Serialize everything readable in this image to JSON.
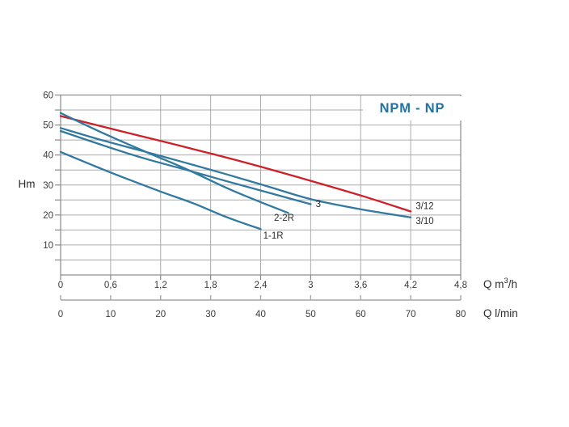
{
  "title": "NPM - NP",
  "colors": {
    "red_curve": "#cd2027",
    "blue_curve": "#31799f",
    "title_text": "#2272a3",
    "grid": "#ababab",
    "frame": "#8a8a8a",
    "secondary_axis": "#a6a6a6",
    "text": "#3a3a3a"
  },
  "y_axis": {
    "name": "Hm",
    "tick_labels": [
      "10",
      "20",
      "30",
      "40",
      "50",
      "60"
    ],
    "tick_values": [
      10,
      20,
      30,
      40,
      50,
      60
    ],
    "minor_step": 5
  },
  "x_axis_primary": {
    "unit_main": "Q m",
    "unit_sup": "3",
    "unit_tail": "/h",
    "tick_labels": [
      "0",
      "0,6",
      "1,2",
      "1,8",
      "2,4",
      "3",
      "3,6",
      "4,2",
      "4,8"
    ],
    "tick_values": [
      0,
      0.6,
      1.2,
      1.8,
      2.4,
      3,
      3.6,
      4.2,
      4.8
    ]
  },
  "x_axis_secondary": {
    "unit": "Q l/min",
    "tick_labels": [
      "0",
      "10",
      "20",
      "30",
      "40",
      "50",
      "60",
      "70",
      "80"
    ],
    "tick_values": [
      0,
      10,
      20,
      30,
      40,
      50,
      60,
      70,
      80
    ]
  },
  "chart_data": {
    "type": "line",
    "title": "NPM - NP",
    "ylabel": "Hm",
    "xlabel_primary": "Q m3/h",
    "xlabel_secondary": "Q l/min",
    "x_range": [
      0,
      4.8
    ],
    "y_range": [
      0,
      60
    ],
    "grid": {
      "x_step": 0.6,
      "y_step": 5,
      "visible": true
    },
    "legend": "inline curve labels",
    "series": [
      {
        "name": "3/12",
        "color_key": "red_curve",
        "points": [
          [
            0,
            53
          ],
          [
            0.6,
            48.8
          ],
          [
            1.2,
            44.7
          ],
          [
            1.8,
            40.5
          ],
          [
            2.4,
            36.1
          ],
          [
            3.0,
            31.4
          ],
          [
            3.6,
            26.5
          ],
          [
            4.2,
            21.2
          ]
        ],
        "label": "3/12",
        "label_at": [
          4.26,
          23.0
        ],
        "anchor": "start"
      },
      {
        "name": "3/10",
        "color_key": "blue_curve",
        "points": [
          [
            0,
            49
          ],
          [
            0.5,
            44.9
          ],
          [
            1.0,
            41.2
          ],
          [
            1.5,
            37.4
          ],
          [
            2.0,
            33.5
          ],
          [
            2.5,
            29.4
          ],
          [
            3.0,
            25.3
          ],
          [
            3.6,
            21.9
          ],
          [
            4.2,
            19.2
          ]
        ],
        "label": "3/10",
        "label_at": [
          4.26,
          18.1
        ],
        "anchor": "start"
      },
      {
        "name": "3",
        "color_key": "blue_curve",
        "points": [
          [
            0,
            48
          ],
          [
            0.5,
            43.3
          ],
          [
            1.0,
            38.9
          ],
          [
            1.5,
            35.1
          ],
          [
            2.0,
            31.2
          ],
          [
            2.5,
            27.4
          ],
          [
            3.0,
            23.6
          ]
        ],
        "label": "3",
        "label_at": [
          3.06,
          23.7
        ],
        "anchor": "start"
      },
      {
        "name": "2-2R",
        "color_key": "blue_curve",
        "points": [
          [
            0,
            54
          ],
          [
            0.5,
            47.4
          ],
          [
            1.0,
            41.3
          ],
          [
            1.5,
            35.4
          ],
          [
            2.0,
            28.9
          ],
          [
            2.4,
            24.3
          ],
          [
            2.73,
            20.7
          ]
        ],
        "label": "2-2R",
        "label_at": [
          2.56,
          19.2
        ],
        "anchor": "start"
      },
      {
        "name": "1-1R",
        "color_key": "blue_curve",
        "points": [
          [
            0,
            41
          ],
          [
            0.4,
            36.4
          ],
          [
            0.8,
            32.0
          ],
          [
            1.2,
            27.8
          ],
          [
            1.6,
            23.8
          ],
          [
            2.0,
            19.2
          ],
          [
            2.4,
            15.3
          ]
        ],
        "label": "1-1R",
        "label_at": [
          2.43,
          13.2
        ],
        "anchor": "start"
      }
    ]
  }
}
